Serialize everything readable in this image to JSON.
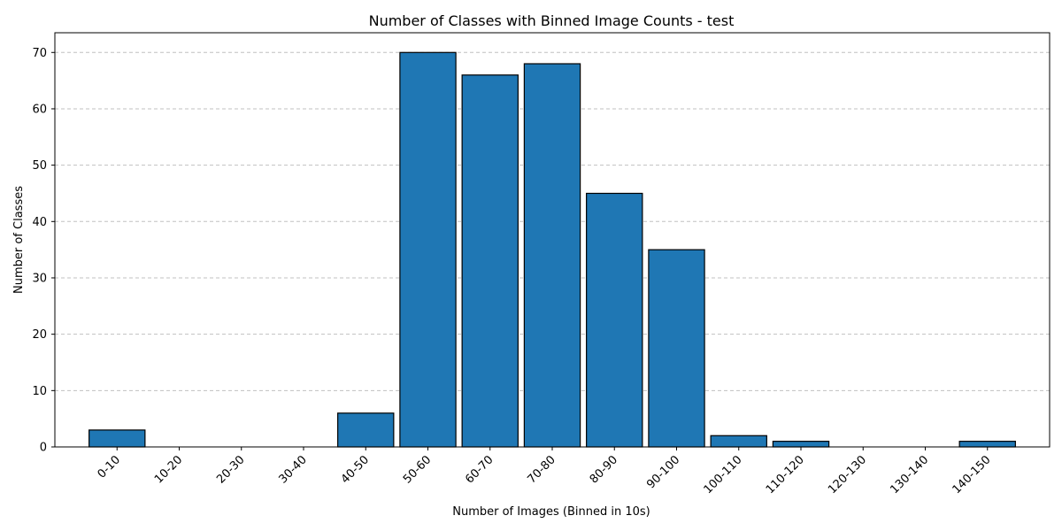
{
  "chart_data": {
    "type": "bar",
    "title": "Number of Classes with Binned Image Counts - test",
    "xlabel": "Number of Images (Binned in 10s)",
    "ylabel": "Number of Classes",
    "categories": [
      "0-10",
      "10-20",
      "20-30",
      "30-40",
      "40-50",
      "50-60",
      "60-70",
      "70-80",
      "80-90",
      "90-100",
      "100-110",
      "110-120",
      "120-130",
      "130-140",
      "140-150"
    ],
    "values": [
      3,
      0,
      0,
      0,
      6,
      70,
      66,
      68,
      45,
      35,
      2,
      1,
      0,
      0,
      1
    ],
    "ylim": [
      0,
      73.5
    ],
    "yticks": [
      0,
      10,
      20,
      30,
      40,
      50,
      60,
      70
    ],
    "grid": "y-dashed",
    "bar_color": "#1f77b4",
    "edge_color": "#000000",
    "grid_color": "#c0c0c0"
  }
}
